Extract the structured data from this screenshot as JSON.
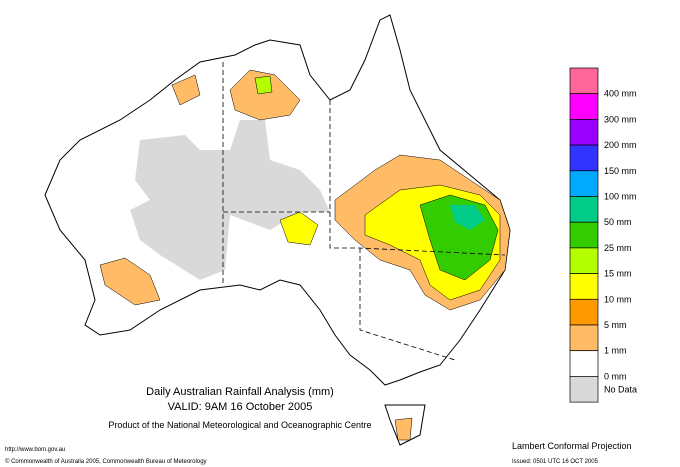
{
  "title": {
    "line1": "Daily Australian Rainfall Analysis (mm)",
    "line2": "VALID: 9AM 16 October 2005",
    "line3": "Product of the National Meteorological and Oceanographic Centre"
  },
  "legend": {
    "items": [
      {
        "label": "400 mm",
        "color": "#ff6699"
      },
      {
        "label": "300 mm",
        "color": "#ff00ff"
      },
      {
        "label": "200 mm",
        "color": "#9900ff"
      },
      {
        "label": "150 mm",
        "color": "#3333ff"
      },
      {
        "label": "100 mm",
        "color": "#00aaff"
      },
      {
        "label": "50 mm",
        "color": "#00cc88"
      },
      {
        "label": "25 mm",
        "color": "#33cc00"
      },
      {
        "label": "15 mm",
        "color": "#b3ff00"
      },
      {
        "label": "10 mm",
        "color": "#ffff00"
      },
      {
        "label": "5 mm",
        "color": "#ff9900"
      },
      {
        "label": "1 mm",
        "color": "#ffbb66"
      },
      {
        "label": "0 mm",
        "color": "#ffffff"
      },
      {
        "label": "No Data",
        "color": "#d9d9d9"
      }
    ]
  },
  "footer": {
    "url": "http://www.bom.gov.au",
    "copyright": "© Commonwealth of Australia 2005, Commonwealth Bureau of Meteorology",
    "projection": "Lambert Conformal Projection",
    "issued": "Issued: 0501 UTC 16 OCT 2005"
  }
}
